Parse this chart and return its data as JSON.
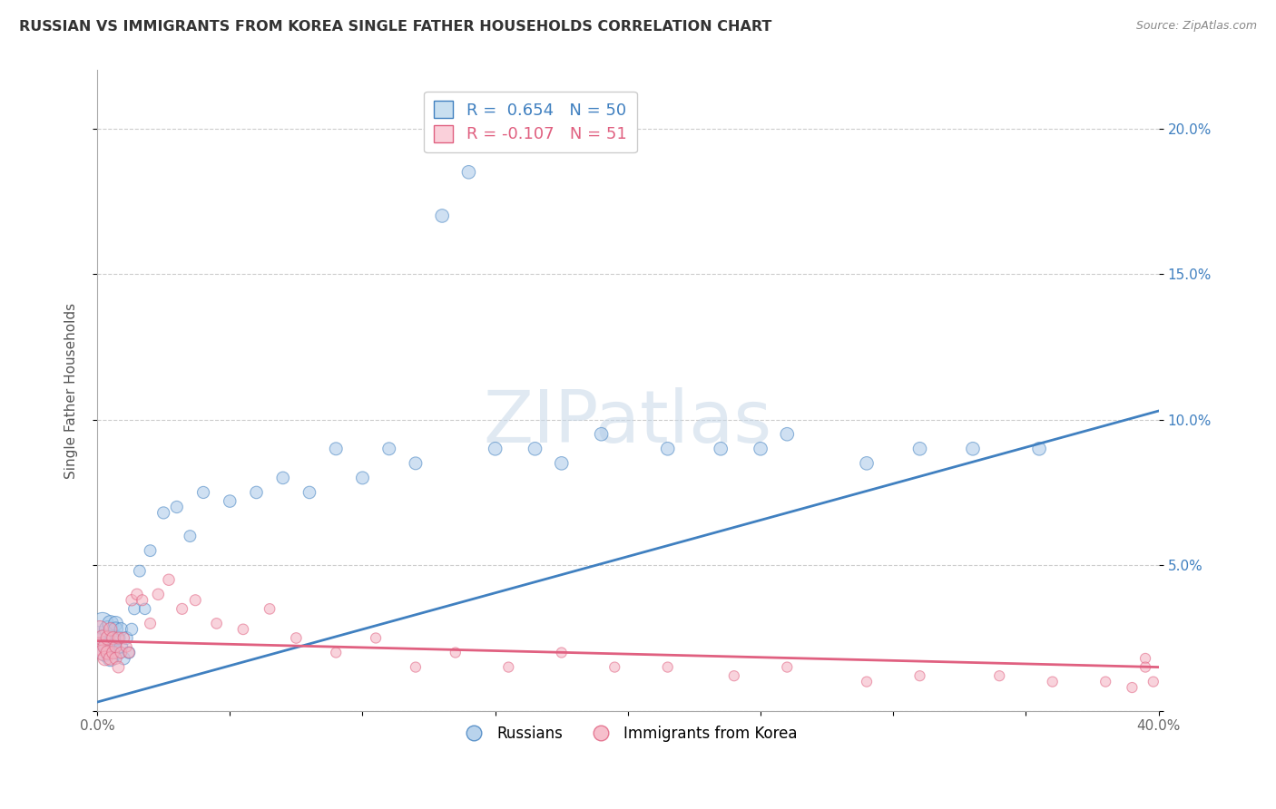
{
  "title": "RUSSIAN VS IMMIGRANTS FROM KOREA SINGLE FATHER HOUSEHOLDS CORRELATION CHART",
  "source": "Source: ZipAtlas.com",
  "ylabel": "Single Father Households",
  "xlim": [
    0.0,
    0.4
  ],
  "ylim": [
    0.0,
    0.22
  ],
  "blue_color": "#a8c8e8",
  "pink_color": "#f4b0c0",
  "blue_line_color": "#4080c0",
  "pink_line_color": "#e06080",
  "blue_fill_color": "#c8dff0",
  "pink_fill_color": "#fad0da",
  "watermark": "ZIPatlas",
  "russians_x": [
    0.001,
    0.002,
    0.003,
    0.003,
    0.004,
    0.004,
    0.005,
    0.005,
    0.006,
    0.006,
    0.007,
    0.007,
    0.008,
    0.008,
    0.009,
    0.009,
    0.01,
    0.011,
    0.012,
    0.013,
    0.014,
    0.016,
    0.018,
    0.02,
    0.025,
    0.03,
    0.035,
    0.04,
    0.05,
    0.06,
    0.07,
    0.08,
    0.09,
    0.1,
    0.11,
    0.12,
    0.13,
    0.14,
    0.15,
    0.165,
    0.175,
    0.19,
    0.215,
    0.235,
    0.25,
    0.26,
    0.29,
    0.31,
    0.33,
    0.355
  ],
  "russians_y": [
    0.025,
    0.03,
    0.02,
    0.025,
    0.022,
    0.028,
    0.018,
    0.03,
    0.025,
    0.022,
    0.03,
    0.028,
    0.02,
    0.025,
    0.022,
    0.028,
    0.018,
    0.025,
    0.02,
    0.028,
    0.035,
    0.048,
    0.035,
    0.055,
    0.068,
    0.07,
    0.06,
    0.075,
    0.072,
    0.075,
    0.08,
    0.075,
    0.09,
    0.08,
    0.09,
    0.085,
    0.17,
    0.185,
    0.09,
    0.09,
    0.085,
    0.095,
    0.09,
    0.09,
    0.09,
    0.095,
    0.085,
    0.09,
    0.09,
    0.09
  ],
  "russians_size": [
    350,
    300,
    200,
    200,
    180,
    180,
    160,
    160,
    140,
    140,
    130,
    130,
    120,
    120,
    110,
    110,
    100,
    100,
    90,
    90,
    85,
    85,
    80,
    85,
    90,
    90,
    85,
    90,
    95,
    95,
    95,
    95,
    100,
    100,
    100,
    100,
    110,
    110,
    110,
    110,
    110,
    110,
    110,
    110,
    110,
    110,
    110,
    110,
    110,
    110
  ],
  "korea_x": [
    0.001,
    0.001,
    0.002,
    0.002,
    0.003,
    0.003,
    0.004,
    0.004,
    0.005,
    0.005,
    0.006,
    0.006,
    0.007,
    0.007,
    0.008,
    0.008,
    0.009,
    0.01,
    0.011,
    0.012,
    0.013,
    0.015,
    0.017,
    0.02,
    0.023,
    0.027,
    0.032,
    0.037,
    0.045,
    0.055,
    0.065,
    0.075,
    0.09,
    0.105,
    0.12,
    0.135,
    0.155,
    0.175,
    0.195,
    0.215,
    0.24,
    0.26,
    0.29,
    0.31,
    0.34,
    0.36,
    0.38,
    0.395,
    0.39,
    0.395,
    0.398
  ],
  "korea_y": [
    0.028,
    0.022,
    0.025,
    0.02,
    0.022,
    0.018,
    0.025,
    0.02,
    0.028,
    0.018,
    0.025,
    0.02,
    0.022,
    0.018,
    0.025,
    0.015,
    0.02,
    0.025,
    0.022,
    0.02,
    0.038,
    0.04,
    0.038,
    0.03,
    0.04,
    0.045,
    0.035,
    0.038,
    0.03,
    0.028,
    0.035,
    0.025,
    0.02,
    0.025,
    0.015,
    0.02,
    0.015,
    0.02,
    0.015,
    0.015,
    0.012,
    0.015,
    0.01,
    0.012,
    0.012,
    0.01,
    0.01,
    0.018,
    0.008,
    0.015,
    0.01
  ],
  "korea_size": [
    180,
    180,
    150,
    150,
    130,
    130,
    120,
    120,
    110,
    110,
    100,
    100,
    90,
    90,
    85,
    85,
    80,
    80,
    75,
    75,
    80,
    80,
    75,
    75,
    80,
    80,
    75,
    75,
    70,
    70,
    70,
    70,
    65,
    65,
    65,
    65,
    65,
    65,
    65,
    65,
    65,
    65,
    65,
    65,
    65,
    65,
    65,
    65,
    65,
    65,
    65
  ],
  "blue_line_x0": 0.0,
  "blue_line_y0": 0.003,
  "blue_line_x1": 0.4,
  "blue_line_y1": 0.103,
  "pink_line_x0": 0.0,
  "pink_line_y0": 0.024,
  "pink_line_x1": 0.4,
  "pink_line_y1": 0.015
}
